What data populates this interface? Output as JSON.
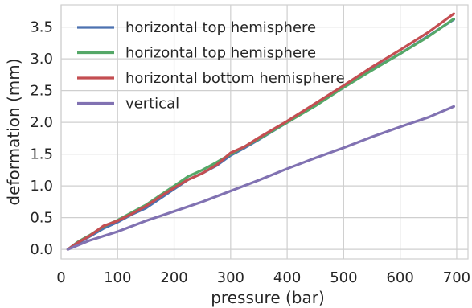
{
  "chart_data": {
    "type": "line",
    "xlabel": "pressure (bar)",
    "ylabel": "deformation (mm)",
    "xlim": [
      0,
      720
    ],
    "ylim": [
      -0.15,
      3.85
    ],
    "xticks": [
      0,
      100,
      200,
      300,
      400,
      500,
      600,
      700
    ],
    "yticks": [
      0.0,
      0.5,
      1.0,
      1.5,
      2.0,
      2.5,
      3.0,
      3.5
    ],
    "xtick_labels": [
      "0",
      "100",
      "200",
      "300",
      "400",
      "500",
      "600",
      "700"
    ],
    "ytick_labels": [
      "0.0",
      "0.5",
      "1.0",
      "1.5",
      "2.0",
      "2.5",
      "3.0",
      "3.5"
    ],
    "grid": true,
    "legend_position": "top-left",
    "series": [
      {
        "name": "horizontal top hemisphere",
        "color": "#4c72b0",
        "x": [
          12,
          30,
          50,
          75,
          100,
          125,
          150,
          175,
          200,
          225,
          250,
          275,
          300,
          325,
          350,
          400,
          450,
          500,
          550,
          600,
          650,
          695
        ],
        "y": [
          0.0,
          0.1,
          0.2,
          0.33,
          0.43,
          0.55,
          0.65,
          0.8,
          0.95,
          1.1,
          1.2,
          1.32,
          1.48,
          1.6,
          1.73,
          2.0,
          2.27,
          2.55,
          2.83,
          3.08,
          3.36,
          3.62
        ]
      },
      {
        "name": "horizontal top hemisphere",
        "color": "#55a868",
        "x": [
          12,
          30,
          50,
          75,
          100,
          125,
          150,
          175,
          200,
          225,
          250,
          275,
          300,
          325,
          350,
          400,
          450,
          500,
          550,
          600,
          650,
          695
        ],
        "y": [
          0.0,
          0.12,
          0.22,
          0.36,
          0.46,
          0.58,
          0.7,
          0.85,
          1.0,
          1.15,
          1.25,
          1.37,
          1.5,
          1.62,
          1.74,
          2.0,
          2.26,
          2.55,
          2.82,
          3.08,
          3.35,
          3.63
        ]
      },
      {
        "name": "horizontal bottom hemisphere",
        "color": "#c44e52",
        "x": [
          12,
          30,
          50,
          75,
          100,
          125,
          150,
          175,
          200,
          225,
          250,
          275,
          300,
          325,
          350,
          400,
          450,
          500,
          550,
          600,
          650,
          695
        ],
        "y": [
          0.0,
          0.11,
          0.21,
          0.37,
          0.45,
          0.56,
          0.68,
          0.83,
          0.97,
          1.1,
          1.2,
          1.33,
          1.52,
          1.62,
          1.76,
          2.02,
          2.3,
          2.58,
          2.87,
          3.14,
          3.42,
          3.71
        ]
      },
      {
        "name": "vertical",
        "color": "#8172b2",
        "x": [
          12,
          50,
          100,
          150,
          200,
          250,
          300,
          350,
          400,
          450,
          500,
          550,
          600,
          650,
          695
        ],
        "y": [
          0.0,
          0.14,
          0.28,
          0.45,
          0.6,
          0.75,
          0.92,
          1.09,
          1.27,
          1.44,
          1.6,
          1.77,
          1.93,
          2.08,
          2.25
        ]
      }
    ]
  }
}
